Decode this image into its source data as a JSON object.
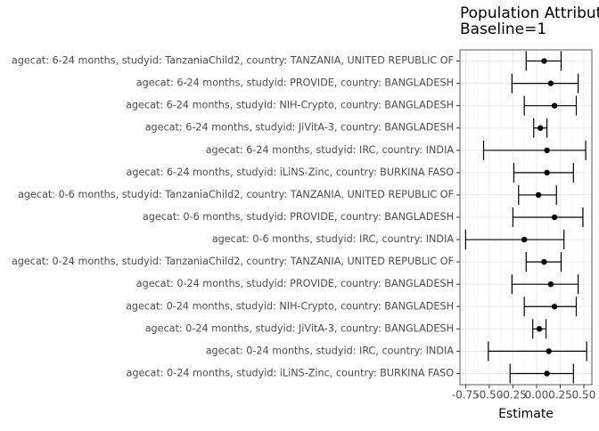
{
  "chart_data": {
    "type": "forest",
    "title": "Population Attributa",
    "subtitle": "Baseline=1",
    "xlabel": "Estimate",
    "categories": [
      "agecat: 6-24 months, studyid: TanzaniaChild2, country: TANZANIA, UNITED REPUBLIC OF",
      "agecat: 6-24 months, studyid: PROVIDE, country: BANGLADESH",
      "agecat: 6-24 months, studyid: NIH-Crypto, country: BANGLADESH",
      "agecat: 6-24 months, studyid: JiVitA-3, country: BANGLADESH",
      "agecat: 6-24 months, studyid: IRC, country: INDIA",
      "agecat: 6-24 months, studyid: iLiNS-Zinc, country: BURKINA FASO",
      "agecat: 0-6 months, studyid: TanzaniaChild2, country: TANZANIA, UNITED REPUBLIC OF",
      "agecat: 0-6 months, studyid: PROVIDE, country: BANGLADESH",
      "agecat: 0-6 months, studyid: IRC, country: INDIA",
      "agecat: 0-24 months, studyid: TanzaniaChild2, country: TANZANIA, UNITED REPUBLIC OF",
      "agecat: 0-24 months, studyid: PROVIDE, country: BANGLADESH",
      "agecat: 0-24 months, studyid: NIH-Crypto, country: BANGLADESH",
      "agecat: 0-24 months, studyid: JiVitA-3, country: BANGLADESH",
      "agecat: 0-24 months, studyid: IRC, country: INDIA",
      "agecat: 0-24 months, studyid: iLiNS-Zinc, country: BURKINA FASO"
    ],
    "values": [
      0.08,
      0.15,
      0.19,
      0.04,
      0.11,
      0.11,
      0.02,
      0.19,
      -0.13,
      0.08,
      0.15,
      0.19,
      0.03,
      0.13,
      0.11
    ],
    "lower": [
      -0.11,
      -0.26,
      -0.13,
      -0.03,
      -0.56,
      -0.24,
      -0.19,
      -0.25,
      -0.75,
      -0.11,
      -0.26,
      -0.13,
      -0.04,
      -0.51,
      -0.28
    ],
    "upper": [
      0.26,
      0.44,
      0.42,
      0.11,
      0.52,
      0.39,
      0.21,
      0.49,
      0.29,
      0.26,
      0.44,
      0.42,
      0.1,
      0.53,
      0.39
    ],
    "color": "#000000",
    "xlim": [
      -0.81,
      0.585
    ],
    "xticks": [
      -0.75,
      {
        "value": -0.5,
        "label": "-0.50"
      },
      -0.25,
      {
        "value": 0,
        "label": "0.00"
      },
      0.25,
      {
        "value": 0.5,
        "label": "0.50"
      }
    ],
    "grid": true
  }
}
